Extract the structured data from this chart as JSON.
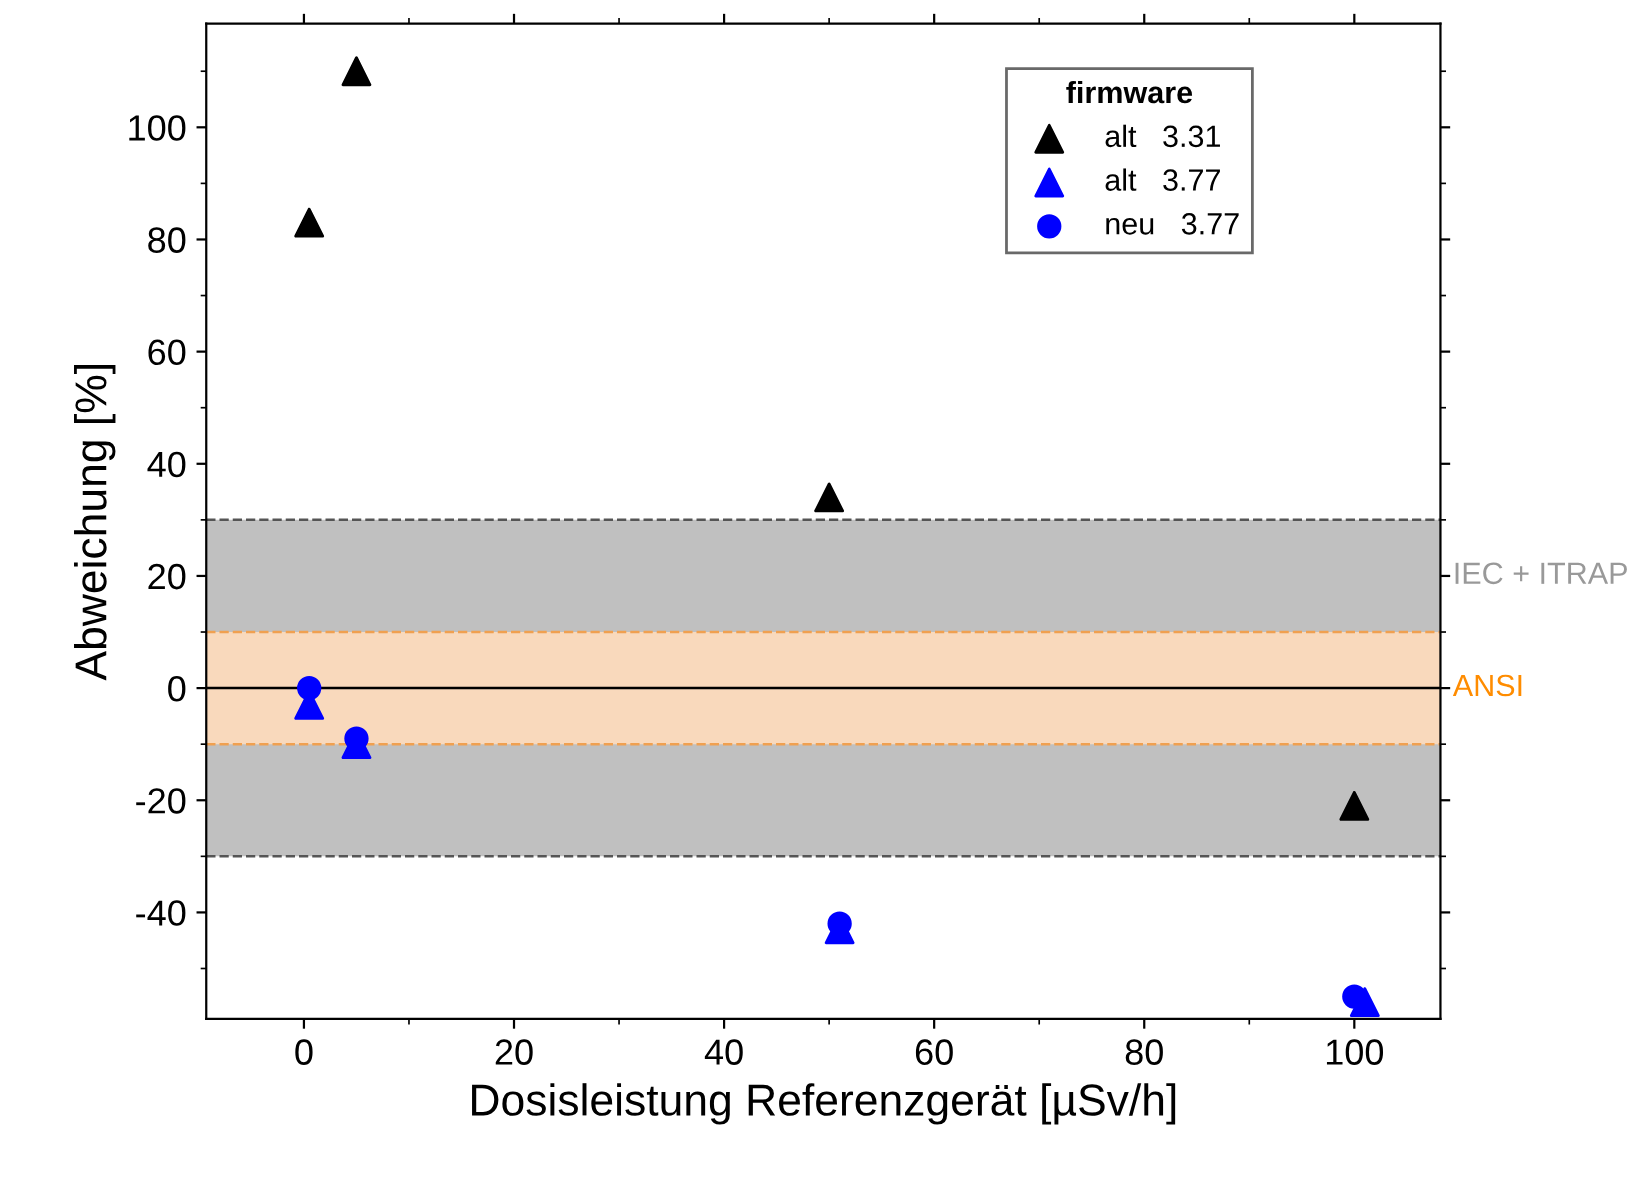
{
  "chart_data": {
    "type": "scatter",
    "xlabel": "Dosisleistung Referenzgerät [µSv/h]",
    "ylabel": "Abweichung [%]",
    "legend_title": "firmware",
    "legend": "top right",
    "grid": false,
    "series": [
      {
        "name": "alt   3.31",
        "color": "#000000",
        "marker": "triangle",
        "x": [
          0.5,
          5,
          50,
          100
        ],
        "values": [
          83,
          110,
          34,
          -21
        ]
      },
      {
        "name": "alt   3.77",
        "color": "#0000ff",
        "marker": "triangle",
        "x": [
          0.5,
          5,
          51,
          101
        ],
        "values": [
          -3,
          -10,
          -43,
          -56
        ]
      },
      {
        "name": "neu   3.77",
        "color": "#0000ff",
        "marker": "circle",
        "x": [
          0.5,
          5,
          51,
          100
        ],
        "values": [
          0,
          -9,
          -42,
          -55
        ]
      }
    ],
    "xlim": [
      -9.3,
      108.2
    ],
    "ylim": [
      -59,
      118.5
    ],
    "xticks": [
      0,
      20,
      40,
      60,
      80,
      100
    ],
    "yticks": [
      -40,
      -20,
      0,
      20,
      40,
      60,
      80,
      100
    ],
    "bands": [
      {
        "axis": "y",
        "from": -30,
        "to": 30,
        "label": "IEC + ITRAP",
        "color": "#c0c0c0"
      },
      {
        "axis": "y",
        "from": -10,
        "to": 10,
        "label": "ANSI",
        "color": "#f9d9bc"
      }
    ],
    "ref_lines": [
      {
        "axis": "y",
        "value": 0,
        "color": "#000000",
        "line_style": "solid"
      },
      {
        "axis": "y",
        "value": 30,
        "color": "#555555",
        "line_style": "dashed"
      },
      {
        "axis": "y",
        "value": -30,
        "color": "#555555",
        "line_style": "dashed"
      },
      {
        "axis": "y",
        "value": 10,
        "color": "#f0a050",
        "line_style": "dashed"
      },
      {
        "axis": "y",
        "value": -10,
        "color": "#f0a050",
        "line_style": "dashed"
      }
    ]
  }
}
